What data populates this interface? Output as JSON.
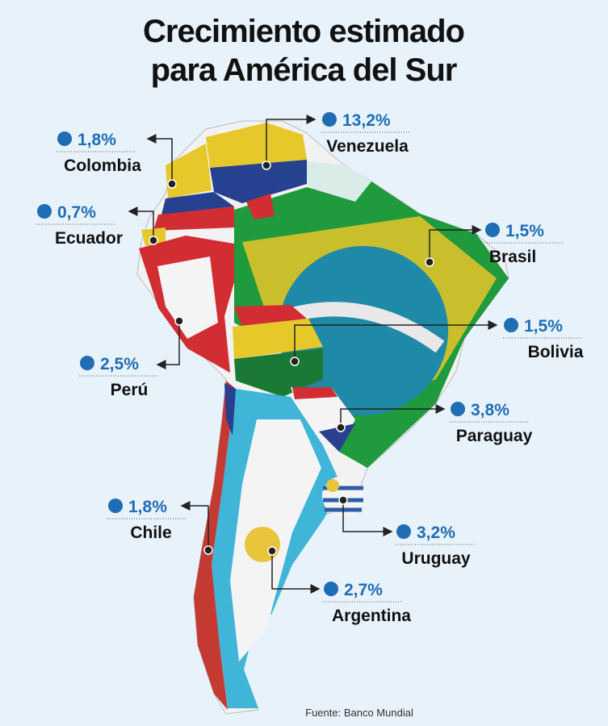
{
  "title_lines": [
    "Crecimiento estimado",
    "para América del Sur"
  ],
  "countries": [
    {
      "name": "Venezuela",
      "growth": "13,2%"
    },
    {
      "name": "Colombia",
      "growth": "1,8%"
    },
    {
      "name": "Ecuador",
      "growth": "0,7%"
    },
    {
      "name": "Brasil",
      "growth": "1,5%"
    },
    {
      "name": "Bolivia",
      "growth": "1,5%"
    },
    {
      "name": "Perú",
      "growth": "2,5%"
    },
    {
      "name": "Paraguay",
      "growth": "3,8%"
    },
    {
      "name": "Chile",
      "growth": "1,8%"
    },
    {
      "name": "Uruguay",
      "growth": "3,2%"
    },
    {
      "name": "Argentina",
      "growth": "2,7%"
    }
  ],
  "source": "Fuente: Banco Mundial"
}
